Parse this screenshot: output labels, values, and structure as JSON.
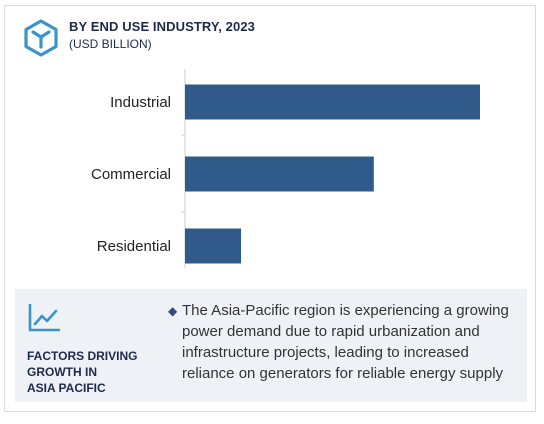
{
  "header": {
    "title": "BY END USE INDUSTRY, 2023",
    "subtitle": "(USD BILLION)",
    "icon": "cube-logo-icon"
  },
  "chart_data": {
    "type": "bar",
    "orientation": "horizontal",
    "title": "BY END USE INDUSTRY, 2023",
    "unit": "USD BILLION",
    "categories": [
      "Industrial",
      "Commercial",
      "Residential"
    ],
    "values": [
      100,
      64,
      19
    ],
    "value_scale_note_hidden": true,
    "colors": {
      "bar": "#2f5a8a",
      "axis": "#c9ced6"
    }
  },
  "panel": {
    "icon": "trend-line-icon",
    "factors_lines": [
      "FACTORS DRIVING",
      "GROWTH IN",
      "ASIA PACIFIC"
    ],
    "bullet": "◆",
    "description": "The Asia-Pacific region is experiencing a growing power demand due to rapid urbanization and infrastructure projects, leading to increased reliance on generators for reliable energy supply"
  },
  "colors": {
    "accent": "#2f5a8a",
    "icon": "#3a93c9",
    "panel_bg": "#eef1f6"
  }
}
